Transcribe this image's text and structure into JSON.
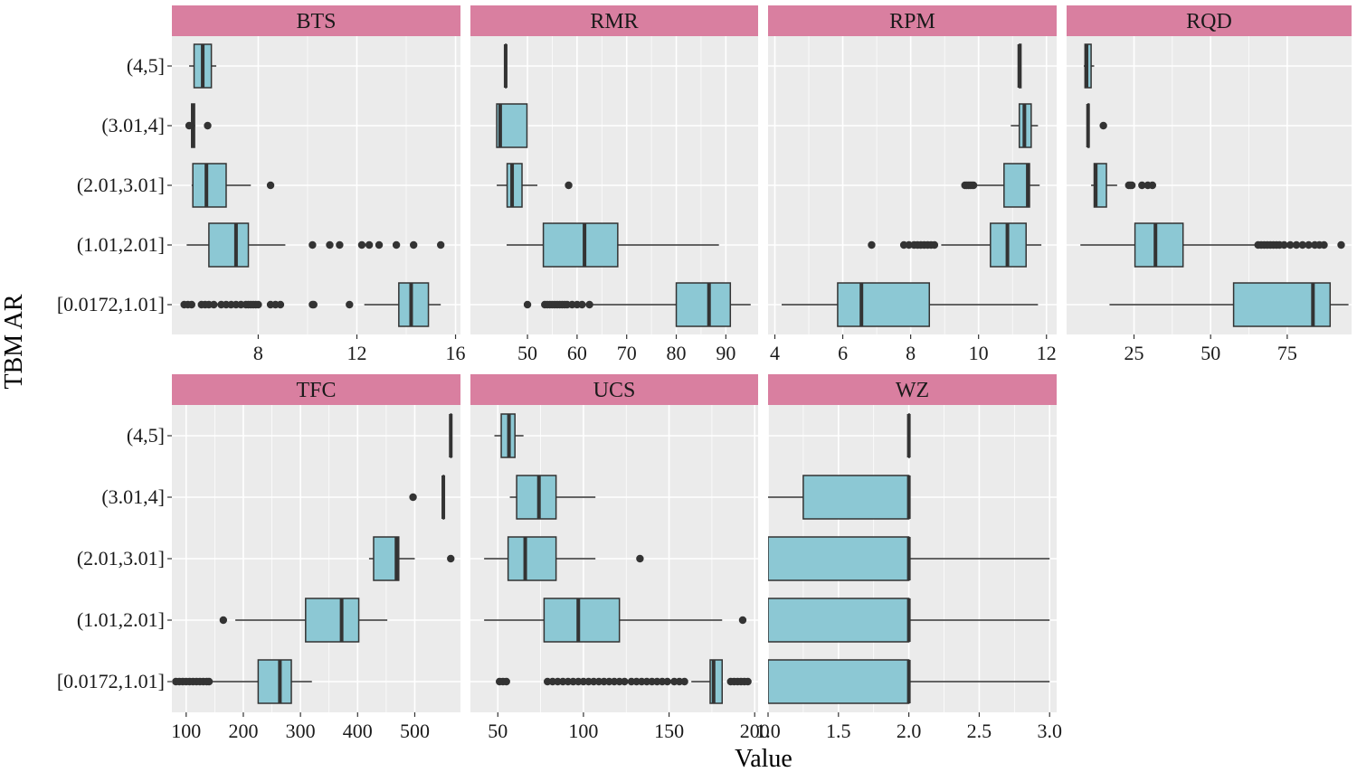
{
  "chart_data": {
    "type": "boxplot",
    "orientation": "horizontal",
    "xlabel": "Value",
    "ylabel": "TBM AR",
    "categories": [
      "(4,5]",
      "(3.01,4]",
      "(2.01,3.01]",
      "(1.01,2.01]",
      "[0.0172,1.01]"
    ],
    "colors": {
      "box_fill": "#8cc8d4",
      "strip_fill": "#d97fa0",
      "panel_bg": "#ebebeb",
      "grid_major": "#ffffff",
      "outline": "#333333"
    },
    "panels": [
      {
        "name": "BTS",
        "xlim": [
          4.5,
          16.2
        ],
        "ticks": [
          8,
          12,
          16
        ],
        "tick_labels": [
          "8",
          "12",
          "16"
        ],
        "boxes": [
          {
            "category": "(4,5]",
            "whisker_low": 5.2,
            "q1": 5.4,
            "median": 5.75,
            "q3": 6.1,
            "whisker_high": 6.3,
            "outliers": []
          },
          {
            "category": "(3.01,4]",
            "whisker_low": 5.3,
            "q1": 5.3,
            "median": 5.35,
            "q3": 5.42,
            "whisker_high": 5.45,
            "outliers": [
              5.2,
              5.95
            ]
          },
          {
            "category": "(2.01,3.01]",
            "whisker_low": 5.3,
            "q1": 5.35,
            "median": 5.9,
            "q3": 6.7,
            "whisker_high": 7.7,
            "outliers": [
              8.5
            ]
          },
          {
            "category": "(1.01,2.01]",
            "whisker_low": 5.1,
            "q1": 6.0,
            "median": 7.1,
            "q3": 7.6,
            "whisker_high": 9.1,
            "outliers": [
              10.2,
              10.9,
              11.3,
              12.2,
              12.5,
              12.9,
              13.6,
              14.3,
              15.4
            ]
          },
          {
            "category": "[0.0172,1.01]",
            "whisker_low": 12.3,
            "q1": 13.7,
            "median": 14.2,
            "q3": 14.9,
            "whisker_high": 15.4,
            "outliers": [
              5.0,
              5.15,
              5.3,
              5.7,
              5.85,
              6.0,
              6.2,
              6.5,
              6.7,
              6.9,
              7.1,
              7.3,
              7.5,
              7.6,
              7.7,
              7.8,
              7.9,
              8.0,
              8.5,
              8.7,
              8.9,
              10.2,
              10.25,
              11.7
            ]
          }
        ]
      },
      {
        "name": "RMR",
        "xlim": [
          38.5,
          96.5
        ],
        "ticks": [
          50,
          60,
          70,
          80,
          90
        ],
        "tick_labels": [
          "50",
          "60",
          "70",
          "80",
          "90"
        ],
        "boxes": [
          {
            "category": "(4,5]",
            "whisker_low": 45.6,
            "q1": 45.6,
            "median": 45.6,
            "q3": 45.6,
            "whisker_high": 45.6,
            "outliers": []
          },
          {
            "category": "(3.01,4]",
            "whisker_low": 43.8,
            "q1": 43.8,
            "median": 44.5,
            "q3": 49.9,
            "whisker_high": 49.9,
            "outliers": []
          },
          {
            "category": "(2.01,3.01]",
            "whisker_low": 43.8,
            "q1": 45.9,
            "median": 46.9,
            "q3": 48.9,
            "whisker_high": 52.0,
            "outliers": [
              58.3
            ]
          },
          {
            "category": "(1.01,2.01]",
            "whisker_low": 45.8,
            "q1": 53.2,
            "median": 61.5,
            "q3": 68.2,
            "whisker_high": 88.6,
            "outliers": []
          },
          {
            "category": "[0.0172,1.01]",
            "whisker_low": 62.5,
            "q1": 80.0,
            "median": 86.6,
            "q3": 90.9,
            "whisker_high": 95.0,
            "outliers": [
              50.0,
              53.5,
              54.0,
              54.5,
              55.0,
              55.5,
              56.0,
              56.5,
              57.0,
              57.5,
              58.0,
              59.0,
              60.0,
              61.0,
              62.5
            ]
          }
        ]
      },
      {
        "name": "RPM",
        "xlim": [
          3.8,
          12.3
        ],
        "ticks": [
          4,
          6,
          8,
          10,
          12
        ],
        "tick_labels": [
          "4",
          "6",
          "8",
          "10",
          "12"
        ],
        "boxes": [
          {
            "category": "(4,5]",
            "whisker_low": 11.2,
            "q1": 11.2,
            "median": 11.2,
            "q3": 11.25,
            "whisker_high": 11.25,
            "outliers": []
          },
          {
            "category": "(3.01,4]",
            "whisker_low": 10.95,
            "q1": 11.2,
            "median": 11.35,
            "q3": 11.55,
            "whisker_high": 11.75,
            "outliers": []
          },
          {
            "category": "(2.01,3.01]",
            "whisker_low": 9.95,
            "q1": 10.75,
            "median": 11.45,
            "q3": 11.5,
            "whisker_high": 11.8,
            "outliers": [
              9.6,
              9.65,
              9.7,
              9.75,
              9.8,
              9.85
            ]
          },
          {
            "category": "(1.01,2.01]",
            "whisker_low": 8.9,
            "q1": 10.35,
            "median": 10.85,
            "q3": 11.4,
            "whisker_high": 11.85,
            "outliers": [
              6.85,
              7.8,
              7.95,
              8.1,
              8.2,
              8.3,
              8.4,
              8.5,
              8.6,
              8.7
            ]
          },
          {
            "category": "[0.0172,1.01]",
            "whisker_low": 4.2,
            "q1": 5.85,
            "median": 6.55,
            "q3": 8.55,
            "whisker_high": 11.75,
            "outliers": []
          }
        ]
      },
      {
        "name": "RQD",
        "xlim": [
          3,
          96
        ],
        "ticks": [
          25,
          50,
          75
        ],
        "tick_labels": [
          "25",
          "50",
          "75"
        ],
        "boxes": [
          {
            "category": "(4,5]",
            "whisker_low": 8.6,
            "q1": 9.0,
            "median": 9.5,
            "q3": 11.0,
            "whisker_high": 12.0,
            "outliers": []
          },
          {
            "category": "(3.01,4]",
            "whisker_low": 10.0,
            "q1": 10.0,
            "median": 10.0,
            "q3": 10.3,
            "whisker_high": 10.3,
            "outliers": [
              15.0
            ]
          },
          {
            "category": "(2.01,3.01]",
            "whisker_low": 11.0,
            "q1": 12.0,
            "median": 12.5,
            "q3": 16.0,
            "whisker_high": 19.5,
            "outliers": [
              23.3,
              23.8,
              24.3,
              27.6,
              29.5,
              31.0
            ]
          },
          {
            "category": "(1.01,2.01]",
            "whisker_low": 7.5,
            "q1": 25.3,
            "median": 32.0,
            "q3": 41.0,
            "whisker_high": 65.0,
            "outliers": [
              65.5,
              66.5,
              67.5,
              68.5,
              69.5,
              70.5,
              71.5,
              72.5,
              74.0,
              76.0,
              78.0,
              80.0,
              82.0,
              84.0,
              85.5,
              87.0,
              92.6
            ]
          },
          {
            "category": "[0.0172,1.01]",
            "whisker_low": 17.0,
            "q1": 57.5,
            "median": 83.4,
            "q3": 89.0,
            "whisker_high": 95.0,
            "outliers": []
          }
        ]
      },
      {
        "name": "TFC",
        "xlim": [
          75,
          580
        ],
        "ticks": [
          100,
          200,
          300,
          400,
          500
        ],
        "tick_labels": [
          "100",
          "200",
          "300",
          "400",
          "500"
        ],
        "boxes": [
          {
            "category": "(4,5]",
            "whisker_low": 563,
            "q1": 563,
            "median": 563,
            "q3": 563,
            "whisker_high": 563,
            "outliers": []
          },
          {
            "category": "(3.01,4]",
            "whisker_low": 550,
            "q1": 550,
            "median": 550,
            "q3": 550,
            "whisker_high": 550,
            "outliers": [
              497
            ]
          },
          {
            "category": "(2.01,3.01]",
            "whisker_low": 420,
            "q1": 428,
            "median": 468,
            "q3": 472,
            "whisker_high": 500,
            "outliers": [
              563
            ]
          },
          {
            "category": "(1.01,2.01]",
            "whisker_low": 186,
            "q1": 309,
            "median": 372,
            "q3": 402,
            "whisker_high": 452,
            "outliers": [
              165
            ]
          },
          {
            "category": "[0.0172,1.01]",
            "whisker_low": 142,
            "q1": 226,
            "median": 264,
            "q3": 284,
            "whisker_high": 320,
            "outliers": [
              82,
              88,
              94,
              100,
              106,
              112,
              118,
              124,
              130,
              136,
              140
            ]
          }
        ]
      },
      {
        "name": "UCS",
        "xlim": [
          34,
          202
        ],
        "ticks": [
          50,
          100,
          150,
          200
        ],
        "tick_labels": [
          "50",
          "100",
          "150",
          "200"
        ],
        "boxes": [
          {
            "category": "(4,5]",
            "whisker_low": 48,
            "q1": 52,
            "median": 56.5,
            "q3": 60,
            "whisker_high": 65,
            "outliers": []
          },
          {
            "category": "(3.01,4]",
            "whisker_low": 57,
            "q1": 61,
            "median": 74,
            "q3": 84,
            "whisker_high": 107,
            "outliers": []
          },
          {
            "category": "(2.01,3.01]",
            "whisker_low": 42,
            "q1": 56,
            "median": 66,
            "q3": 84,
            "whisker_high": 107,
            "outliers": [
              133
            ]
          },
          {
            "category": "(1.01,2.01]",
            "whisker_low": 42,
            "q1": 77,
            "median": 97,
            "q3": 121,
            "whisker_high": 181,
            "outliers": [
              193
            ]
          },
          {
            "category": "[0.0172,1.01]",
            "whisker_low": 163,
            "q1": 174,
            "median": 176,
            "q3": 181,
            "whisker_high": 181,
            "outliers": [
              51,
              53,
              55,
              79,
              82,
              85,
              88,
              91,
              94,
              97,
              100,
              103,
              106,
              109,
              112,
              115,
              118,
              121,
              124,
              128,
              131,
              134,
              137,
              140,
              143,
              146,
              149,
              153,
              156,
              159,
              186,
              188,
              190,
              192,
              194,
              196
            ]
          }
        ]
      },
      {
        "name": "WZ",
        "xlim": [
          1.0,
          3.05
        ],
        "ticks": [
          1.0,
          1.5,
          2.0,
          2.5,
          3.0
        ],
        "tick_labels": [
          "1.0",
          "1.5",
          "2.0",
          "2.5",
          "3.0"
        ],
        "boxes": [
          {
            "category": "(4,5]",
            "whisker_low": 2.0,
            "q1": 2.0,
            "median": 2.0,
            "q3": 2.0,
            "whisker_high": 2.0,
            "outliers": []
          },
          {
            "category": "(3.01,4]",
            "whisker_low": 1.0,
            "q1": 1.25,
            "median": 2.0,
            "q3": 2.0,
            "whisker_high": 2.0,
            "outliers": []
          },
          {
            "category": "(2.01,3.01]",
            "whisker_low": 1.0,
            "q1": 1.0,
            "median": 2.0,
            "q3": 2.0,
            "whisker_high": 3.0,
            "outliers": []
          },
          {
            "category": "(1.01,2.01]",
            "whisker_low": 1.0,
            "q1": 1.0,
            "median": 2.0,
            "q3": 2.0,
            "whisker_high": 3.0,
            "outliers": []
          },
          {
            "category": "[0.0172,1.01]",
            "whisker_low": 1.0,
            "q1": 1.0,
            "median": 2.0,
            "q3": 2.0,
            "whisker_high": 3.0,
            "outliers": []
          }
        ]
      }
    ]
  }
}
